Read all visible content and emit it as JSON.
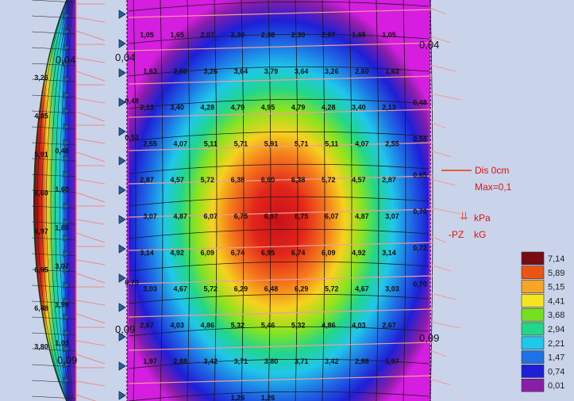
{
  "main_grid": {
    "rows": [
      [
        "1,05",
        "1,65",
        "2,07",
        "2,30",
        "2,38",
        "2,30",
        "2,07",
        "1,65",
        "1,05"
      ],
      [
        "1,63",
        "2,60",
        "3,26",
        "3,64",
        "3,79",
        "3,64",
        "3,26",
        "2,60",
        "1,63"
      ],
      [
        "2,13",
        "3,40",
        "4,28",
        "4,79",
        "4,95",
        "4,79",
        "4,28",
        "3,40",
        "2,13"
      ],
      [
        "2,55",
        "4,07",
        "5,11",
        "5,71",
        "5,91",
        "5,71",
        "5,11",
        "4,07",
        "2,55"
      ],
      [
        "2,87",
        "4,57",
        "5,72",
        "6,38",
        "6,60",
        "6,38",
        "5,72",
        "4,57",
        "2,87"
      ],
      [
        "3,07",
        "4,87",
        "6,07",
        "6,75",
        "6,97",
        "6,75",
        "6,07",
        "4,87",
        "3,07"
      ],
      [
        "3,14",
        "4,92",
        "6,09",
        "6,74",
        "6,95",
        "6,74",
        "6,09",
        "4,92",
        "3,14"
      ],
      [
        "3,03",
        "4,67",
        "5,72",
        "6,29",
        "6,48",
        "6,29",
        "5,72",
        "4,67",
        "3,03"
      ],
      [
        "2,67",
        "4,03",
        "4,86",
        "5,32",
        "5,46",
        "5,32",
        "4,86",
        "4,03",
        "2,67"
      ],
      [
        "1,97",
        "2,88",
        "3,42",
        "3,71",
        "3,80",
        "3,71",
        "3,42",
        "2,88",
        "1,97"
      ],
      [
        "",
        "",
        "",
        "1,26",
        "1,26",
        "",
        "",
        "",
        ""
      ]
    ],
    "left_edge": [
      "",
      "",
      "0,48",
      "0,53",
      "",
      "",
      "",
      "0,70",
      "",
      "",
      ""
    ],
    "right_edge": [
      "",
      "",
      "0,48",
      "0,58",
      "0,65",
      "0,70",
      "0,72",
      "0,70",
      "",
      "",
      ""
    ]
  },
  "left_panel": {
    "labels": [
      {
        "a": "3,26",
        "b": ""
      },
      {
        "a": "4,85",
        "b": "0,48"
      },
      {
        "a": "5,91",
        "b": "1,60"
      },
      {
        "a": "6,60",
        "b": "1,80"
      },
      {
        "a": "6,97",
        "b": "3,07"
      },
      {
        "a": "6,95",
        "b": "1,99"
      },
      {
        "a": "6,48",
        "b": "1,03"
      },
      {
        "a": "3,80",
        "b": ""
      }
    ]
  },
  "displacement_labels": {
    "top_left": "0,04",
    "top_mid": "0,04",
    "top_right": "0,04",
    "bottom_left": "0,09",
    "bottom_mid": "0,09",
    "bottom_right": "0,09"
  },
  "info": {
    "dis": "Dis  0cm",
    "max": "Max=0,1",
    "kpa": "kPa",
    "pz": "-PZ",
    "kg": "kG"
  },
  "legend": {
    "items": [
      {
        "label": "7,14",
        "color": "#7a0a14"
      },
      {
        "label": "5,89",
        "color": "#ea5514"
      },
      {
        "label": "5,15",
        "color": "#f5a623"
      },
      {
        "label": "4,41",
        "color": "#f5e51e"
      },
      {
        "label": "3,68",
        "color": "#77e01e"
      },
      {
        "label": "2,94",
        "color": "#22d68a"
      },
      {
        "label": "2,21",
        "color": "#1fc7ea"
      },
      {
        "label": "1,47",
        "color": "#1e72e5"
      },
      {
        "label": "0,74",
        "color": "#1d1fd6"
      },
      {
        "label": "0,01",
        "color": "#8a1ea8"
      }
    ]
  }
}
